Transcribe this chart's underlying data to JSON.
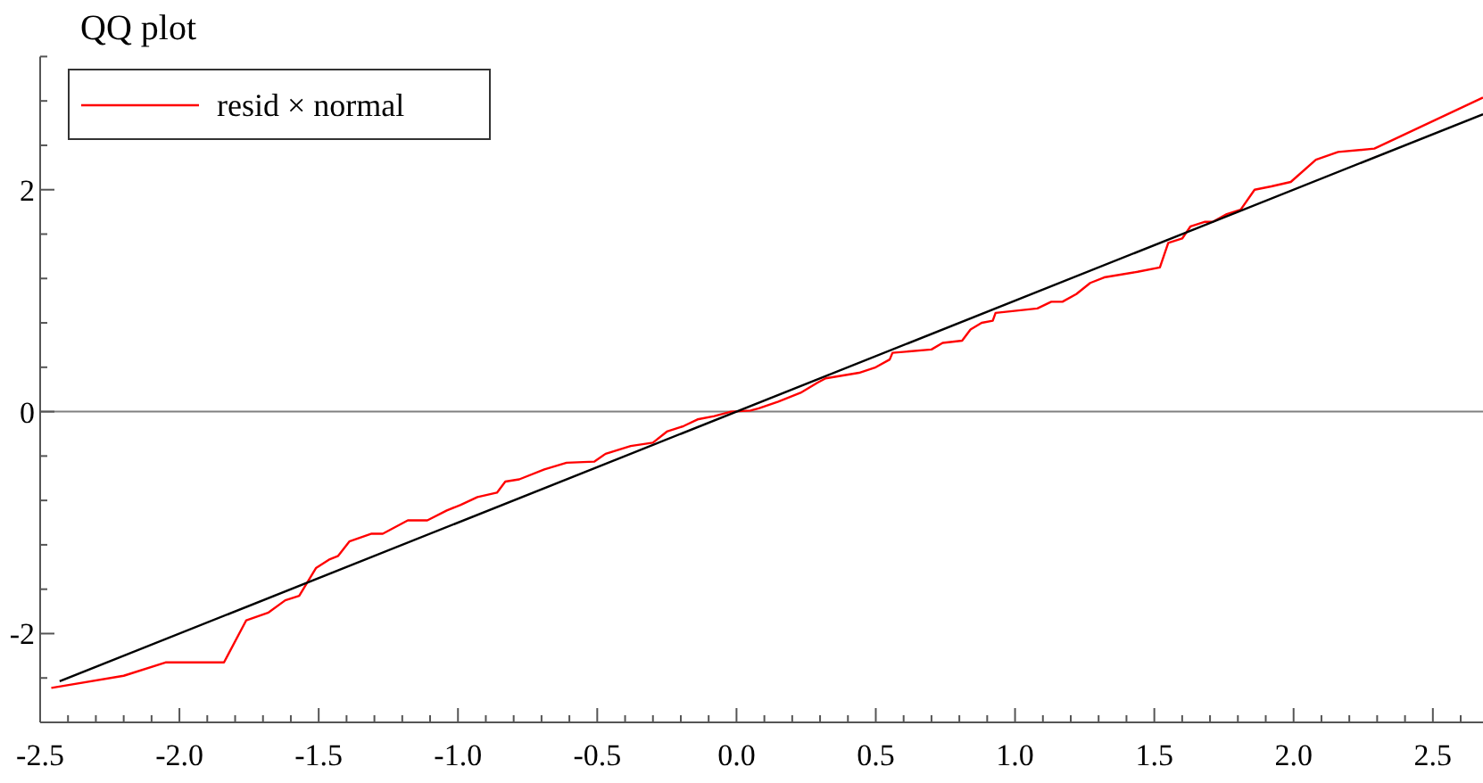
{
  "chart_data": {
    "type": "line",
    "title": "QQ plot",
    "xlim": [
      -2.5,
      2.68
    ],
    "ylim": [
      -2.8,
      3.2
    ],
    "xticks": [
      -2.5,
      {
        "value": -2.4,
        "label": null
      },
      {
        "value": -2.3,
        "label": null
      },
      {
        "value": -2.2,
        "label": null
      },
      {
        "value": -2.1,
        "label": null
      },
      {
        "value": -2,
        "label": "-2.0"
      },
      {
        "value": -1.9,
        "label": null
      },
      {
        "value": -1.8,
        "label": null
      },
      {
        "value": -1.7,
        "label": null
      },
      {
        "value": -1.6,
        "label": null
      },
      -1.5,
      {
        "value": -1.4,
        "label": null
      },
      {
        "value": -1.3,
        "label": null
      },
      {
        "value": -1.2,
        "label": null
      },
      {
        "value": -1.1,
        "label": null
      },
      {
        "value": -1,
        "label": "-1.0"
      },
      {
        "value": -0.9,
        "label": null
      },
      {
        "value": -0.8,
        "label": null
      },
      {
        "value": -0.7,
        "label": null
      },
      {
        "value": -0.6,
        "label": null
      },
      -0.5,
      {
        "value": -0.4,
        "label": null
      },
      {
        "value": -0.3,
        "label": null
      },
      {
        "value": -0.2,
        "label": null
      },
      {
        "value": -0.1,
        "label": null
      },
      {
        "value": 0,
        "label": "0.0"
      },
      {
        "value": 0.1,
        "label": null
      },
      {
        "value": 0.2,
        "label": null
      },
      {
        "value": 0.3,
        "label": null
      },
      {
        "value": 0.4,
        "label": null
      },
      0.5,
      {
        "value": 0.6,
        "label": null
      },
      {
        "value": 0.7,
        "label": null
      },
      {
        "value": 0.8,
        "label": null
      },
      {
        "value": 0.9,
        "label": null
      },
      {
        "value": 1,
        "label": "1.0"
      },
      {
        "value": 1.1,
        "label": null
      },
      {
        "value": 1.2,
        "label": null
      },
      {
        "value": 1.3,
        "label": null
      },
      {
        "value": 1.4,
        "label": null
      },
      1.5,
      {
        "value": 1.6,
        "label": null
      },
      {
        "value": 1.7,
        "label": null
      },
      {
        "value": 1.8,
        "label": null
      },
      {
        "value": 1.9,
        "label": null
      },
      {
        "value": 2,
        "label": "2.0"
      },
      {
        "value": 2.1,
        "label": null
      },
      {
        "value": 2.2,
        "label": null
      },
      {
        "value": 2.3,
        "label": null
      },
      {
        "value": 2.4,
        "label": null
      },
      2.5,
      {
        "value": 2.6,
        "label": null
      }
    ],
    "yticks": [
      {
        "value": -2.4,
        "label": null
      },
      -2,
      {
        "value": -1.6,
        "label": null
      },
      {
        "value": -1.2,
        "label": null
      },
      {
        "value": -0.8,
        "label": null
      },
      {
        "value": -0.4,
        "label": null
      },
      0,
      {
        "value": 0.4,
        "label": null
      },
      {
        "value": 0.8,
        "label": null
      },
      {
        "value": 1.2,
        "label": null
      },
      {
        "value": 1.6,
        "label": null
      },
      2,
      {
        "value": 2.4,
        "label": null
      },
      {
        "value": 2.8,
        "label": null
      }
    ],
    "grid": false,
    "legend": "top left",
    "marker": "none",
    "line_style": "solid",
    "ref_lines": [
      {
        "axis": "y",
        "value": 0,
        "color": "#808080"
      }
    ],
    "series": [
      {
        "name": "resid × normal",
        "color": "#ff0000",
        "x": [
          -2.46,
          -2.2,
          -2.05,
          -1.84,
          -1.76,
          -1.68,
          -1.62,
          -1.57,
          -1.51,
          -1.46,
          -1.43,
          -1.39,
          -1.31,
          -1.27,
          -1.18,
          -1.11,
          -1.04,
          -0.99,
          -0.93,
          -0.86,
          -0.83,
          -0.78,
          -0.69,
          -0.61,
          -0.51,
          -0.47,
          -0.38,
          -0.3,
          -0.25,
          -0.19,
          -0.14,
          -0.08,
          -0.02,
          0.05,
          0.08,
          0.15,
          0.23,
          0.29,
          0.32,
          0.44,
          0.5,
          0.55,
          0.56,
          0.7,
          0.74,
          0.81,
          0.84,
          0.88,
          0.92,
          0.93,
          1.08,
          1.13,
          1.17,
          1.22,
          1.27,
          1.32,
          1.44,
          1.52,
          1.55,
          1.6,
          1.63,
          1.68,
          1.71,
          1.76,
          1.81,
          1.86,
          1.92,
          1.99,
          2.08,
          2.16,
          2.29,
          2.68
        ],
        "values": [
          -2.49,
          -2.38,
          -2.26,
          -2.26,
          -1.88,
          -1.81,
          -1.7,
          -1.66,
          -1.41,
          -1.33,
          -1.3,
          -1.17,
          -1.1,
          -1.1,
          -0.98,
          -0.98,
          -0.89,
          -0.84,
          -0.77,
          -0.73,
          -0.63,
          -0.61,
          -0.52,
          -0.46,
          -0.45,
          -0.38,
          -0.31,
          -0.28,
          -0.18,
          -0.13,
          -0.07,
          -0.04,
          0,
          0.01,
          0.03,
          0.09,
          0.17,
          0.26,
          0.3,
          0.35,
          0.4,
          0.47,
          0.53,
          0.56,
          0.62,
          0.64,
          0.74,
          0.8,
          0.82,
          0.89,
          0.93,
          0.99,
          0.99,
          1.06,
          1.16,
          1.21,
          1.26,
          1.3,
          1.52,
          1.56,
          1.67,
          1.71,
          1.71,
          1.78,
          1.82,
          2,
          2.03,
          2.07,
          2.27,
          2.34,
          2.37,
          2.83
        ]
      },
      {
        "type": "line",
        "color": "#000000",
        "x": [
          -2.43,
          2.68
        ],
        "values": [
          -2.43,
          2.68
        ]
      }
    ]
  }
}
